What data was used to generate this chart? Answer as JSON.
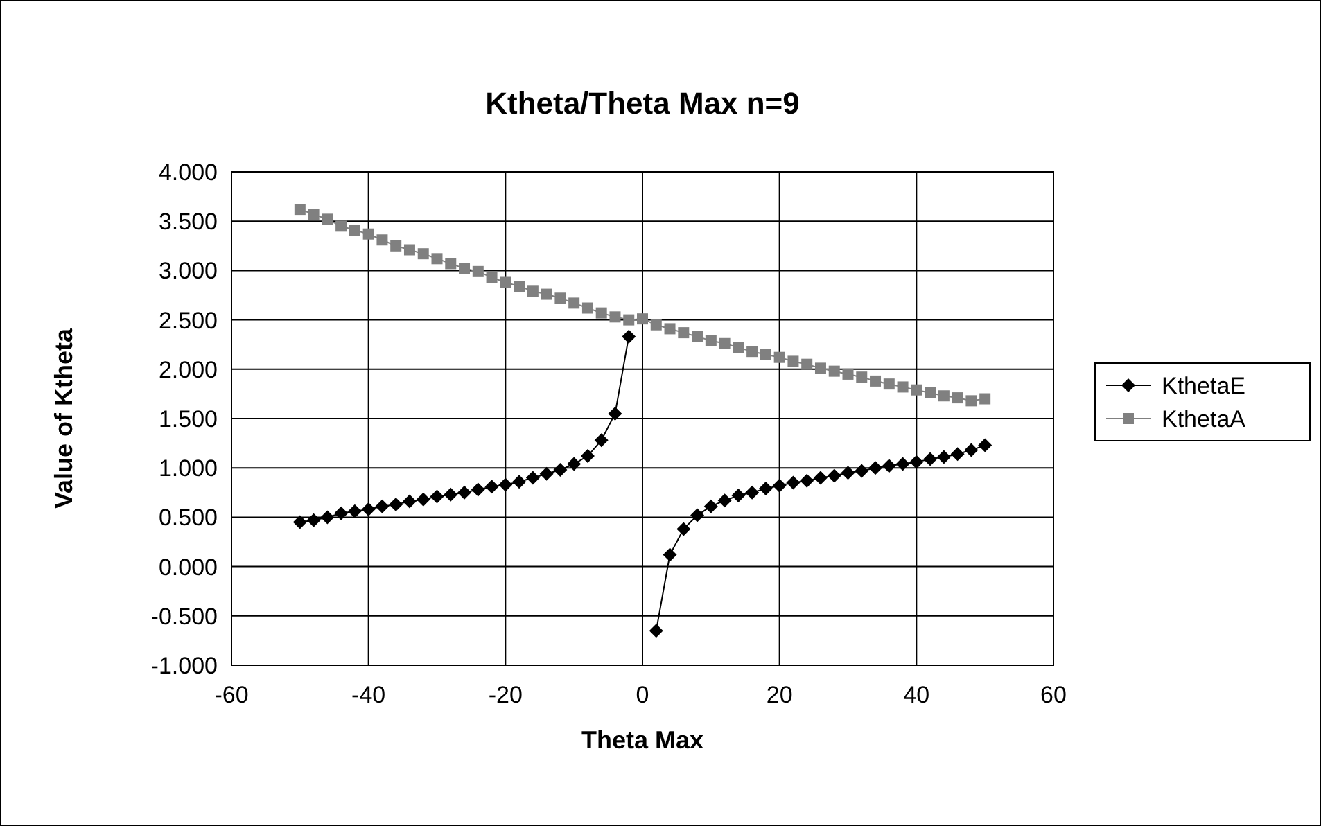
{
  "chart_data": {
    "type": "line",
    "title": "Ktheta/Theta Max n=9",
    "xlabel": "Theta Max",
    "ylabel": "Value of Ktheta",
    "x": [
      -50,
      -48,
      -46,
      -44,
      -42,
      -40,
      -38,
      -36,
      -34,
      -32,
      -30,
      -28,
      -26,
      -24,
      -22,
      -20,
      -18,
      -16,
      -14,
      -12,
      -10,
      -8,
      -6,
      -4,
      -2,
      0,
      2,
      4,
      6,
      8,
      10,
      12,
      14,
      16,
      18,
      20,
      22,
      24,
      26,
      28,
      30,
      32,
      34,
      36,
      38,
      40,
      42,
      44,
      46,
      48,
      50
    ],
    "series": [
      {
        "name": "KthetaE",
        "color": "#000000",
        "marker": "diamond",
        "values": [
          0.45,
          0.47,
          0.5,
          0.54,
          0.56,
          0.58,
          0.61,
          0.63,
          0.66,
          0.68,
          0.71,
          0.73,
          0.75,
          0.78,
          0.81,
          0.83,
          0.86,
          0.9,
          0.94,
          0.98,
          1.04,
          1.12,
          1.28,
          1.55,
          2.33,
          null,
          -0.65,
          0.12,
          0.38,
          0.52,
          0.61,
          0.67,
          0.72,
          0.75,
          0.79,
          0.82,
          0.85,
          0.87,
          0.9,
          0.92,
          0.95,
          0.97,
          1.0,
          1.02,
          1.04,
          1.06,
          1.09,
          1.11,
          1.14,
          1.18,
          1.23
        ]
      },
      {
        "name": "KthetaA",
        "color": "#808080",
        "marker": "square",
        "values": [
          3.62,
          3.57,
          3.52,
          3.45,
          3.41,
          3.37,
          3.31,
          3.25,
          3.21,
          3.17,
          3.12,
          3.07,
          3.02,
          2.99,
          2.93,
          2.88,
          2.84,
          2.79,
          2.76,
          2.72,
          2.67,
          2.62,
          2.57,
          2.53,
          2.5,
          2.51,
          2.45,
          2.41,
          2.37,
          2.33,
          2.29,
          2.26,
          2.22,
          2.18,
          2.15,
          2.12,
          2.08,
          2.05,
          2.01,
          1.98,
          1.95,
          1.92,
          1.88,
          1.85,
          1.82,
          1.79,
          1.76,
          1.73,
          1.71,
          1.68,
          1.7
        ]
      }
    ],
    "xlim": [
      -60,
      60
    ],
    "xticks": [
      -60,
      -40,
      -20,
      0,
      20,
      40,
      60
    ],
    "ylim": [
      -1,
      4
    ],
    "yticks": [
      {
        "value": -1,
        "label": "-1.000"
      },
      {
        "value": -0.5,
        "label": "-0.500"
      },
      {
        "value": 0,
        "label": "0.000"
      },
      {
        "value": 0.5,
        "label": "0.500"
      },
      {
        "value": 1,
        "label": "1.000"
      },
      {
        "value": 1.5,
        "label": "1.500"
      },
      {
        "value": 2,
        "label": "2.000"
      },
      {
        "value": 2.5,
        "label": "2.500"
      },
      {
        "value": 3,
        "label": "3.000"
      },
      {
        "value": 3.5,
        "label": "3.500"
      },
      {
        "value": 4,
        "label": "4.000"
      }
    ],
    "grid": true,
    "legend": "right",
    "line_style": "solid"
  }
}
